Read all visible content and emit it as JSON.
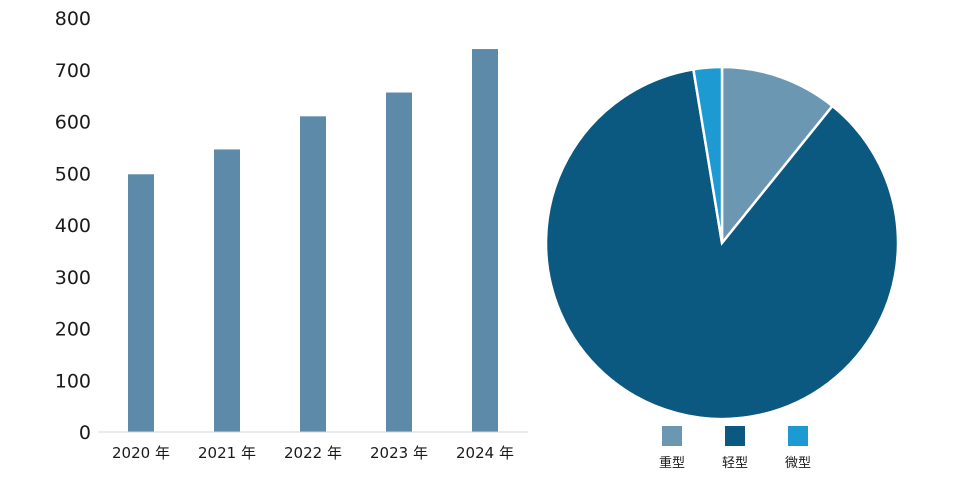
{
  "chart_data": [
    {
      "type": "bar",
      "categories": [
        "2020 年",
        "2021 年",
        "2022 年",
        "2023 年",
        "2024 年"
      ],
      "values": [
        498,
        546,
        610,
        656,
        740
      ],
      "ylim": [
        0,
        800
      ],
      "yticks": [
        0,
        100,
        200,
        300,
        400,
        500,
        600,
        700,
        800
      ],
      "title": "",
      "xlabel": "",
      "ylabel": "",
      "grid": false,
      "color": "#5d8aa8"
    },
    {
      "type": "pie",
      "slices": [
        {
          "label": "重型",
          "value": 10.8,
          "color": "#6b97b3"
        },
        {
          "label": "轻型",
          "value": 86.6,
          "color": "#0b5880"
        },
        {
          "label": "微型",
          "value": 2.6,
          "color": "#1d9ad2"
        }
      ],
      "legend": "bottom",
      "edge_color": "#ffffff"
    }
  ]
}
